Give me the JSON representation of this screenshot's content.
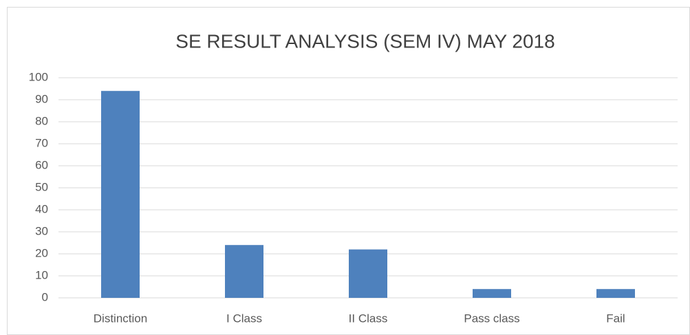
{
  "chart_data": {
    "type": "bar",
    "title": "SE RESULT ANALYSIS (SEM IV) MAY 2018",
    "categories": [
      "Distinction",
      "I Class",
      "II Class",
      "Pass class",
      "Fail"
    ],
    "values": [
      94,
      24,
      22,
      4,
      4
    ],
    "color": "#4e81bd",
    "ylim": [
      0,
      100
    ],
    "yticks": [
      0,
      10,
      20,
      30,
      40,
      50,
      60,
      70,
      80,
      90,
      100
    ],
    "grid": true
  }
}
